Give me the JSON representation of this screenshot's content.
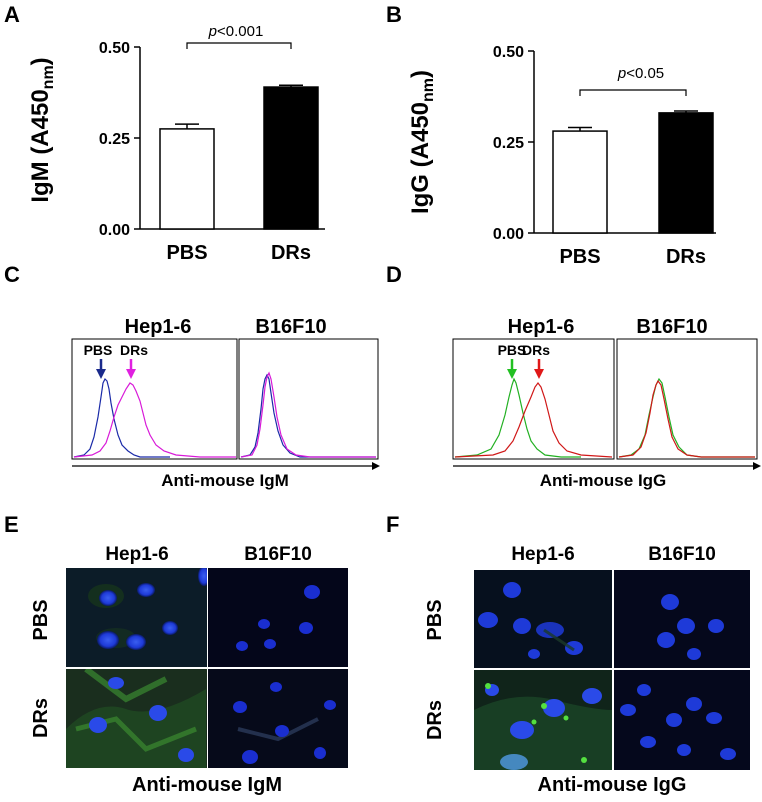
{
  "panels": {
    "A": "A",
    "B": "B",
    "C": "C",
    "D": "D",
    "E": "E",
    "F": "F"
  },
  "chart_data": [
    {
      "type": "bar",
      "ylabel": "IgM (A450",
      "ylabel_sub": "nm",
      "ylabel_close": ")",
      "categories": [
        "PBS",
        "DRs"
      ],
      "values": [
        0.275,
        0.39
      ],
      "errors": [
        0.013,
        0.005
      ],
      "bar_colors": [
        "#ffffff",
        "#000000"
      ],
      "ylim": [
        0,
        0.5
      ],
      "yticks": [
        "0.00",
        "0.25",
        "0.50"
      ],
      "annotation": "p<0.001"
    },
    {
      "type": "bar",
      "ylabel": "IgG (A450",
      "ylabel_sub": "nm",
      "ylabel_close": ")",
      "categories": [
        "PBS",
        "DRs"
      ],
      "values": [
        0.28,
        0.33
      ],
      "errors": [
        0.01,
        0.005
      ],
      "bar_colors": [
        "#ffffff",
        "#000000"
      ],
      "ylim": [
        0,
        0.5
      ],
      "yticks": [
        "0.00",
        "0.25",
        "0.50"
      ],
      "annotation": "p<0.05"
    }
  ],
  "flow": {
    "C": {
      "headers": [
        "Hep1-6",
        "B16F10"
      ],
      "arrow_labels": [
        "PBS",
        "DRs"
      ],
      "arrow_colors": [
        "#1a2a8c",
        "#e020e0"
      ],
      "series_colors": [
        "#1a2aa8",
        "#d81ad8"
      ],
      "xlabel": "Anti-mouse IgM"
    },
    "D": {
      "headers": [
        "Hep1-6",
        "B16F10"
      ],
      "arrow_labels": [
        "PBS",
        "DRs"
      ],
      "arrow_colors": [
        "#22c022",
        "#e01818"
      ],
      "series_colors": [
        "#22b022",
        "#d01818"
      ],
      "xlabel": "Anti-mouse IgG"
    }
  },
  "micro": {
    "E": {
      "cols": [
        "Hep1-6",
        "B16F10"
      ],
      "rows": [
        "PBS",
        "DRs"
      ],
      "caption": "Anti-mouse IgM"
    },
    "F": {
      "cols": [
        "Hep1-6",
        "B16F10"
      ],
      "rows": [
        "PBS",
        "DRs"
      ],
      "caption": "Anti-mouse IgG"
    }
  }
}
